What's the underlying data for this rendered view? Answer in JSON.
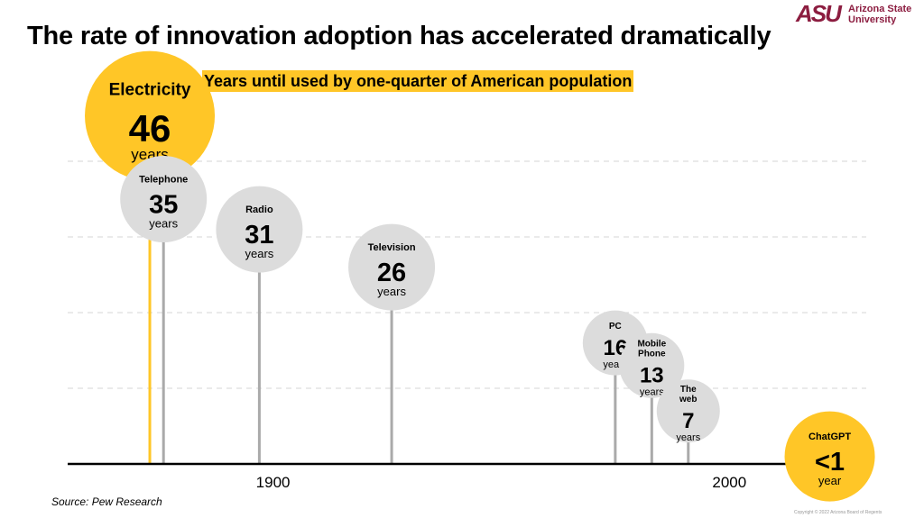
{
  "header": {
    "title": "The rate of innovation adoption has accelerated dramatically",
    "logo_mark": "ASU",
    "logo_line1": "Arizona State",
    "logo_line2": "University"
  },
  "footer": {
    "source": "Source: Pew Research",
    "copyright": "Copyright © 2022 Arizona Board of Regents"
  },
  "colors": {
    "highlight": "#FFC627",
    "bubble": "#DCDCDC",
    "stem": "#AAAAAA",
    "brand": "#8C1D40"
  },
  "chart_data": {
    "type": "scatter",
    "title": "Years until used by one-quarter of American population",
    "x_tick_labels": [
      "1900",
      "2000"
    ],
    "x_ticks": [
      1900,
      2000
    ],
    "xlim": [
      1855,
      2030
    ],
    "ylim": [
      0,
      50
    ],
    "grid": true,
    "points": [
      {
        "label": "Electricity",
        "year": 1873,
        "value": 46,
        "value_text": "46",
        "unit": "years",
        "highlight": true
      },
      {
        "label": "Telephone",
        "year": 1876,
        "value": 35,
        "value_text": "35",
        "unit": "years",
        "highlight": false
      },
      {
        "label": "Radio",
        "year": 1897,
        "value": 31,
        "value_text": "31",
        "unit": "years",
        "highlight": false
      },
      {
        "label": "Television",
        "year": 1926,
        "value": 26,
        "value_text": "26",
        "unit": "years",
        "highlight": false
      },
      {
        "label": "PC",
        "year": 1975,
        "value": 16,
        "value_text": "16",
        "unit": "years",
        "highlight": false
      },
      {
        "label": "Mobile Phone",
        "year": 1983,
        "value": 13,
        "value_text": "13",
        "unit": "years",
        "highlight": false
      },
      {
        "label": "The web",
        "year": 1991,
        "value": 7,
        "value_text": "7",
        "unit": "years",
        "highlight": false
      },
      {
        "label": "ChatGPT",
        "year": 2022,
        "value": 1,
        "value_text": "<1",
        "unit": "year",
        "highlight": true
      }
    ]
  }
}
